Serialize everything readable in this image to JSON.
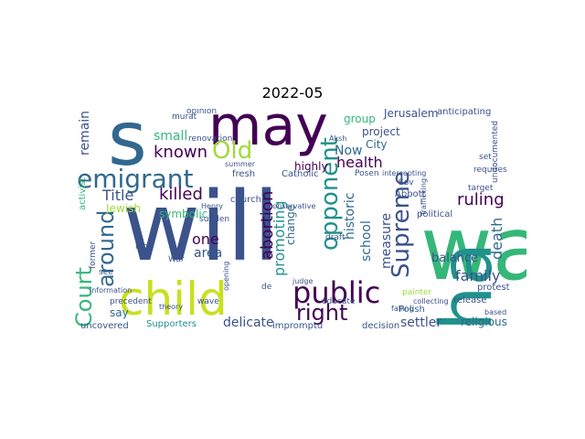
{
  "title": "2022-05",
  "colors": {
    "dark_purple": "#440154",
    "indigo": "#3b528b",
    "slate_blue": "#31688e",
    "teal": "#21918c",
    "green": "#35b779",
    "lime": "#a0da39",
    "yellow_green": "#c8e020"
  },
  "words": {
    "wa": "wa",
    "will": "will",
    "ha": "ha",
    "s": "s",
    "may": "may",
    "child": "child",
    "public": "public",
    "right": "right",
    "emigrant": "emigrant",
    "Court": "Court",
    "around": "around",
    "Supreme": "Supreme",
    "opponent": "opponent",
    "Old": "Old",
    "known": "known",
    "killed": "killed",
    "Title": "Title",
    "small": "small",
    "abortion": "abortion",
    "promoting": "promoting",
    "health": "health",
    "school": "school",
    "family": "family",
    "death": "death",
    "measure": "measure",
    "ruling": "ruling",
    "historic": "historic",
    "remain": "remain",
    "one": "one",
    "area": "area",
    "delicate": "delicate",
    "settler": "settler",
    "religious": "religious",
    "balance": "balance",
    "Now": "Now",
    "project": "project",
    "group": "group",
    "Jerusalem": "Jerusalem",
    "anticipating": "anticipating",
    "City": "City",
    "Jewish": "Jewish",
    "symbolic": "symbolic",
    "change": "change",
    "highly": "highly",
    "say": "say",
    "impromptu": "impromptu",
    "decision": "decision",
    "uncovered": "uncovered",
    "Supporters": "Supporters",
    "political": "political",
    "activist": "activist",
    "undocumented": "undocumented",
    "protest": "protest",
    "release": "release",
    "requires": "requires",
    "target": "target",
    "Abbott": "Abbott",
    "painter": "painter",
    "Polish": "Polish",
    "collecting": "collecting",
    "church": "church",
    "sudden": "sudden",
    "renovation": "renovation",
    "opinion": "opinion",
    "murat": "murat",
    "Catholic": "Catholic",
    "fresh": "fresh",
    "conservative": "conservative",
    "Posen": "Posen",
    "draft": "draft",
    "educate": "educate",
    "wave": "wave",
    "look": "look",
    "see": "see",
    "former": "former",
    "precedent": "precedent",
    "information": "information",
    "theory": "theory",
    "opening": "opening",
    "summer": "summer",
    "intercepting": "intercepting",
    "Sov": "Sov",
    "based": "based",
    "falling": "falling",
    "judge": "judge",
    "Aksh": "Aksh",
    "set": "set",
    "War": "War",
    "Henry": "Henry",
    "de": "de",
    "Trafficking": "Trafficking"
  }
}
